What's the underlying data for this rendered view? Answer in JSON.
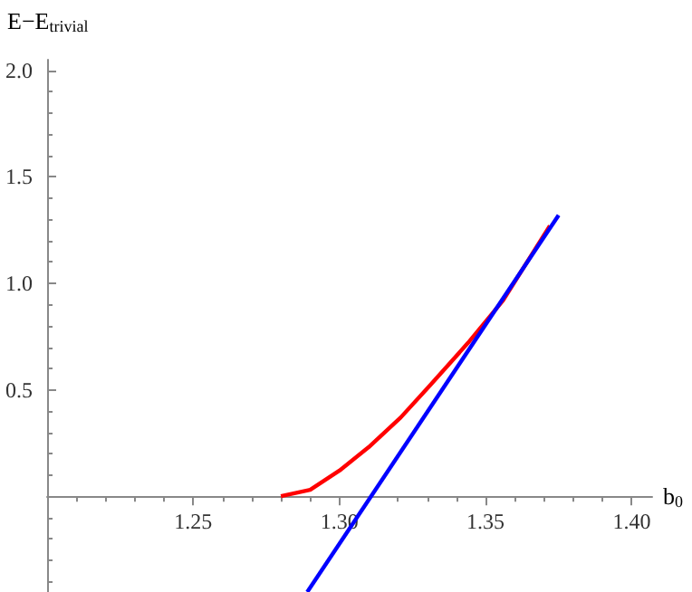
{
  "chart_data": {
    "type": "line",
    "xlabel": "b$_{0}$",
    "ylabel": "E−E$_{trivial}$",
    "xlim": [
      1.2,
      1.407
    ],
    "ylim": [
      -0.45,
      2.05
    ],
    "xticks": [
      1.25,
      {
        "value": 1.3,
        "label": "1.30"
      },
      1.35,
      {
        "value": 1.4,
        "label": "1.40"
      }
    ],
    "yticks": [
      0.5,
      {
        "value": 1,
        "label": "1.0"
      },
      1.5,
      {
        "value": 2,
        "label": "2.0"
      }
    ],
    "grid": false,
    "marker": "none",
    "line_style": "solid",
    "series": [
      {
        "color": "#ff0000",
        "x": [
          1.28,
          1.29,
          1.3,
          1.31,
          1.321,
          1.331,
          1.344,
          1.356,
          1.372
        ],
        "values": [
          0,
          0.03,
          0.12,
          0.23,
          0.37,
          0.52,
          0.72,
          0.92,
          1.27
        ]
      },
      {
        "color": "#0000ff",
        "x": [
          1.289,
          1.375
        ],
        "values": [
          -0.45,
          1.32
        ]
      }
    ]
  }
}
